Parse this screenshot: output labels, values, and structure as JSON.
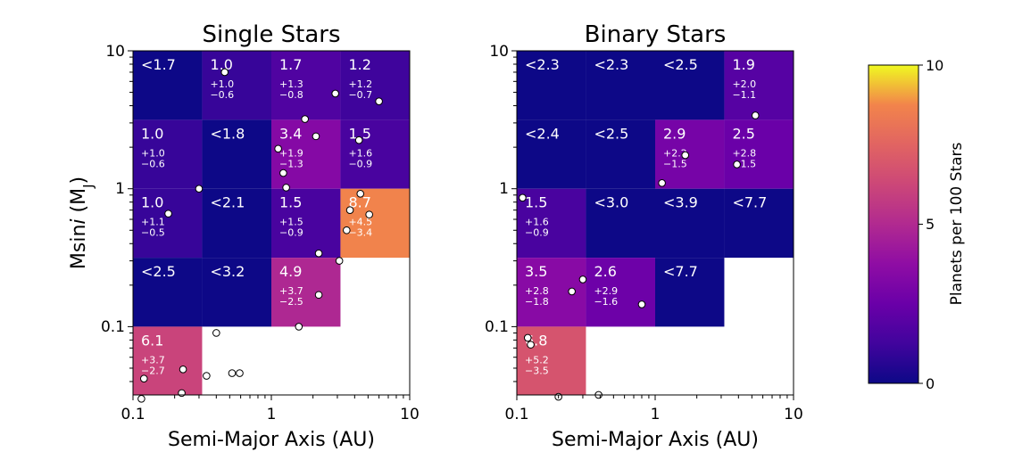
{
  "chart_data": {
    "type": "heatmap",
    "colorbar": {
      "label": "Planets per 100 Stars",
      "range": [
        0,
        10
      ],
      "ticks": [
        "0",
        "5",
        "10"
      ],
      "colormap": "plasma"
    },
    "xscale": "log",
    "yscale": "log",
    "xlim": [
      0.1,
      10
    ],
    "ylim": [
      0.03,
      10
    ],
    "x_bin_edges": [
      0.1,
      0.316,
      1,
      3.16,
      10
    ],
    "y_bin_edges": [
      0.1,
      0.316,
      1,
      3.16,
      10
    ],
    "low_y_bin": [
      0.03,
      0.1
    ],
    "panels": [
      {
        "title": "Single Stars",
        "xlabel": "Semi-Major Axis (AU)",
        "ylabel_pre": "Msin",
        "ylabel_it": "i",
        "ylabel_post": " (M",
        "ylabel_sub": "J",
        "ylabel_end": ")",
        "xticks": [
          "0.1",
          "1",
          "10"
        ],
        "yticks": [
          "10",
          "1",
          "0.1"
        ],
        "cells": [
          {
            "col": 0,
            "row": 0,
            "rate": 0.0,
            "text": "<1.7",
            "up": "",
            "down": ""
          },
          {
            "col": 1,
            "row": 0,
            "rate": 1.0,
            "text": "1.0",
            "up": "+1.0",
            "down": "−0.6"
          },
          {
            "col": 2,
            "row": 0,
            "rate": 1.7,
            "text": "1.7",
            "up": "+1.3",
            "down": "−0.8"
          },
          {
            "col": 3,
            "row": 0,
            "rate": 1.2,
            "text": "1.2",
            "up": "+1.2",
            "down": "−0.7"
          },
          {
            "col": 0,
            "row": 1,
            "rate": 1.0,
            "text": "1.0",
            "up": "+1.0",
            "down": "−0.6"
          },
          {
            "col": 1,
            "row": 1,
            "rate": 0.0,
            "text": "<1.8",
            "up": "",
            "down": ""
          },
          {
            "col": 2,
            "row": 1,
            "rate": 3.4,
            "text": "3.4",
            "up": "+1.9",
            "down": "−1.3"
          },
          {
            "col": 3,
            "row": 1,
            "rate": 1.5,
            "text": "1.5",
            "up": "+1.6",
            "down": "−0.9"
          },
          {
            "col": 0,
            "row": 2,
            "rate": 1.0,
            "text": "1.0",
            "up": "+1.1",
            "down": "−0.5"
          },
          {
            "col": 1,
            "row": 2,
            "rate": 0.0,
            "text": "<2.1",
            "up": "",
            "down": ""
          },
          {
            "col": 2,
            "row": 2,
            "rate": 1.5,
            "text": "1.5",
            "up": "+1.5",
            "down": "−0.9"
          },
          {
            "col": 3,
            "row": 2,
            "rate": 8.7,
            "text": "8.7",
            "up": "+4.5",
            "down": "−3.4"
          },
          {
            "col": 0,
            "row": 3,
            "rate": 0.0,
            "text": "<2.5",
            "up": "",
            "down": ""
          },
          {
            "col": 1,
            "row": 3,
            "rate": 0.0,
            "text": "<3.2",
            "up": "",
            "down": ""
          },
          {
            "col": 2,
            "row": 3,
            "rate": 4.9,
            "text": "4.9",
            "up": "+3.7",
            "down": "−2.5"
          },
          {
            "col": 0,
            "row": 4,
            "rate": 6.1,
            "text": "6.1",
            "up": "+3.7",
            "down": "−2.7"
          }
        ],
        "points": [
          {
            "a": 0.46,
            "m": 7.0
          },
          {
            "a": 2.9,
            "m": 4.9
          },
          {
            "a": 6.0,
            "m": 4.3
          },
          {
            "a": 1.75,
            "m": 3.2
          },
          {
            "a": 2.1,
            "m": 2.4
          },
          {
            "a": 4.3,
            "m": 2.25
          },
          {
            "a": 1.12,
            "m": 1.95
          },
          {
            "a": 1.22,
            "m": 1.3
          },
          {
            "a": 1.28,
            "m": 1.02
          },
          {
            "a": 0.3,
            "m": 1.0
          },
          {
            "a": 4.4,
            "m": 0.92
          },
          {
            "a": 3.7,
            "m": 0.7
          },
          {
            "a": 5.1,
            "m": 0.65
          },
          {
            "a": 0.18,
            "m": 0.66
          },
          {
            "a": 3.5,
            "m": 0.5
          },
          {
            "a": 2.2,
            "m": 0.34
          },
          {
            "a": 3.1,
            "m": 0.3
          },
          {
            "a": 2.2,
            "m": 0.17
          },
          {
            "a": 1.58,
            "m": 0.1
          },
          {
            "a": 0.4,
            "m": 0.09
          },
          {
            "a": 0.23,
            "m": 0.049
          },
          {
            "a": 0.12,
            "m": 0.042
          },
          {
            "a": 0.34,
            "m": 0.044
          },
          {
            "a": 0.52,
            "m": 0.046
          },
          {
            "a": 0.59,
            "m": 0.046
          },
          {
            "a": 0.225,
            "m": 0.033
          },
          {
            "a": 0.115,
            "m": 0.03
          }
        ]
      },
      {
        "title": "Binary Stars",
        "xlabel": "Semi-Major Axis (AU)",
        "xticks": [
          "0.1",
          "1",
          "10"
        ],
        "yticks": [
          "10",
          "1",
          "0.1"
        ],
        "cells": [
          {
            "col": 0,
            "row": 0,
            "rate": 0.0,
            "text": "<2.3",
            "up": "",
            "down": ""
          },
          {
            "col": 1,
            "row": 0,
            "rate": 0.0,
            "text": "<2.3",
            "up": "",
            "down": ""
          },
          {
            "col": 2,
            "row": 0,
            "rate": 0.0,
            "text": "<2.5",
            "up": "",
            "down": ""
          },
          {
            "col": 3,
            "row": 0,
            "rate": 1.9,
            "text": "1.9",
            "up": "+2.0",
            "down": "−1.1"
          },
          {
            "col": 0,
            "row": 1,
            "rate": 0.0,
            "text": "<2.4",
            "up": "",
            "down": ""
          },
          {
            "col": 1,
            "row": 1,
            "rate": 0.0,
            "text": "<2.5",
            "up": "",
            "down": ""
          },
          {
            "col": 2,
            "row": 1,
            "rate": 2.9,
            "text": "2.9",
            "up": "+2.2",
            "down": "−1.5"
          },
          {
            "col": 3,
            "row": 1,
            "rate": 2.5,
            "text": "2.5",
            "up": "+2.8",
            "down": "−1.5"
          },
          {
            "col": 0,
            "row": 2,
            "rate": 1.5,
            "text": "1.5",
            "up": "+1.6",
            "down": "−0.9"
          },
          {
            "col": 1,
            "row": 2,
            "rate": 0.0,
            "text": "<3.0",
            "up": "",
            "down": ""
          },
          {
            "col": 2,
            "row": 2,
            "rate": 0.0,
            "text": "<3.9",
            "up": "",
            "down": ""
          },
          {
            "col": 3,
            "row": 2,
            "rate": 0.0,
            "text": "<7.7",
            "up": "",
            "down": ""
          },
          {
            "col": 0,
            "row": 3,
            "rate": 3.5,
            "text": "3.5",
            "up": "+2.8",
            "down": "−1.8"
          },
          {
            "col": 1,
            "row": 3,
            "rate": 2.6,
            "text": "2.6",
            "up": "+2.9",
            "down": "−1.6"
          },
          {
            "col": 2,
            "row": 3,
            "rate": 0.0,
            "text": "<7.7",
            "up": "",
            "down": ""
          },
          {
            "col": 0,
            "row": 4,
            "rate": 6.8,
            "text": "6.8",
            "up": "+5.2",
            "down": "−3.5"
          }
        ],
        "points": [
          {
            "a": 5.3,
            "m": 3.4
          },
          {
            "a": 1.65,
            "m": 1.75
          },
          {
            "a": 3.9,
            "m": 1.5
          },
          {
            "a": 1.12,
            "m": 1.1
          },
          {
            "a": 0.11,
            "m": 0.86
          },
          {
            "a": 0.3,
            "m": 0.22
          },
          {
            "a": 0.25,
            "m": 0.18
          },
          {
            "a": 0.8,
            "m": 0.145
          },
          {
            "a": 0.12,
            "m": 0.083
          },
          {
            "a": 0.126,
            "m": 0.074
          },
          {
            "a": 0.2,
            "m": 0.031
          },
          {
            "a": 0.39,
            "m": 0.032
          }
        ]
      }
    ]
  }
}
